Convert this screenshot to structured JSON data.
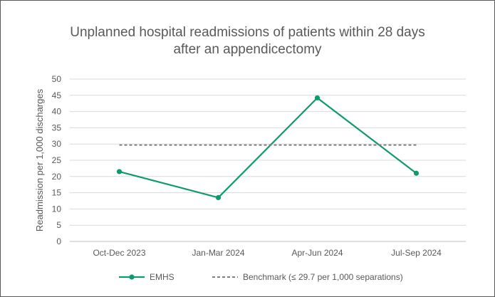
{
  "chart_data": {
    "type": "line",
    "title_lines": [
      "Unplanned hospital readmissions of patients within 28 days",
      "after an appendicectomy"
    ],
    "xlabel": "",
    "ylabel": "Readmission per 1,000 discharges",
    "ylim": [
      0,
      50
    ],
    "y_ticks": [
      0,
      5,
      10,
      15,
      20,
      25,
      30,
      35,
      40,
      45,
      50
    ],
    "categories": [
      "Oct-Dec 2023",
      "Jan-Mar 2024",
      "Apr-Jun 2024",
      "Jul-Sep 2024"
    ],
    "grid": true,
    "legend_position": "bottom",
    "series": [
      {
        "name": "EMHS",
        "values": [
          21.5,
          13.5,
          44.2,
          21.0
        ],
        "color": "#0E9A6E",
        "style": "solid-with-markers"
      },
      {
        "name": "Benchmark (≤ 29.7 per 1,000 separations)",
        "values": [
          29.7,
          29.7,
          29.7,
          29.7
        ],
        "color": "#7F7F7F",
        "style": "dashed"
      }
    ]
  }
}
